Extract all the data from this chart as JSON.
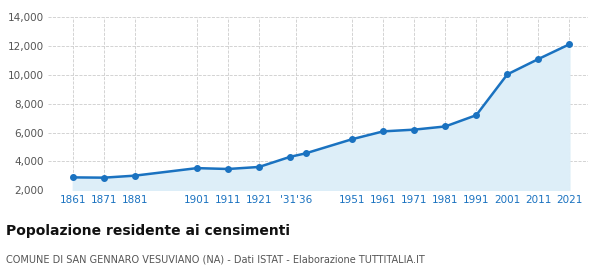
{
  "years": [
    1861,
    1871,
    1881,
    1901,
    1911,
    1921,
    1931,
    1936,
    1951,
    1961,
    1971,
    1981,
    1991,
    2001,
    2011,
    2021
  ],
  "population": [
    2900,
    2880,
    3020,
    3540,
    3480,
    3620,
    4320,
    4560,
    5540,
    6080,
    6200,
    6420,
    7200,
    10020,
    11080,
    12100
  ],
  "line_color": "#1a72c0",
  "fill_color": "#ddeef8",
  "marker_color": "#1a72c0",
  "grid_color": "#cccccc",
  "background_color": "#ffffff",
  "title": "Popolazione residente ai censimenti",
  "subtitle": "COMUNE DI SAN GENNARO VESUVIANO (NA) - Dati ISTAT - Elaborazione TUTTITALIA.IT",
  "ylim": [
    2000,
    14000
  ],
  "yticks": [
    2000,
    4000,
    6000,
    8000,
    10000,
    12000,
    14000
  ],
  "x_tick_pos": [
    1861,
    1871,
    1881,
    1901,
    1911,
    1921,
    1933,
    1951,
    1961,
    1971,
    1981,
    1991,
    2001,
    2011,
    2021
  ],
  "x_tick_labels": [
    "1861",
    "1871",
    "1881",
    "1901",
    "1911",
    "1921",
    "'31'36",
    "1951",
    "1961",
    "1971",
    "1981",
    "1991",
    "2001",
    "2011",
    "2021"
  ],
  "xlim_left": 1853,
  "xlim_right": 2027
}
